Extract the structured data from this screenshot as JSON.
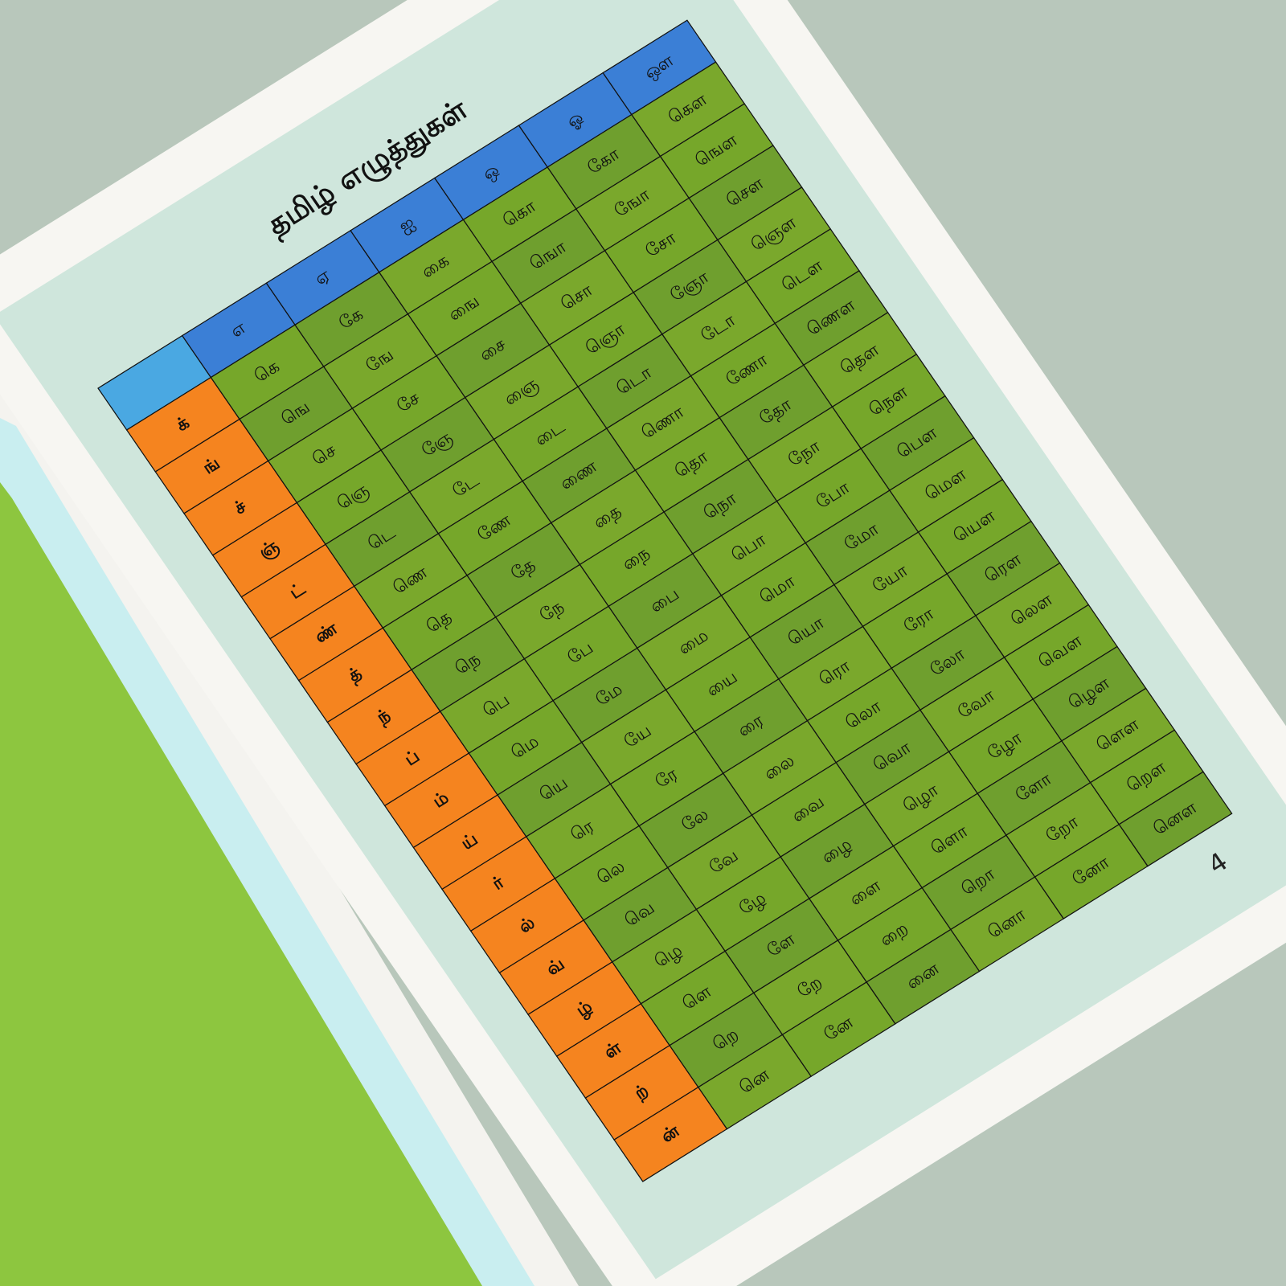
{
  "title": "தமிழ் எழுத்துகள்",
  "page_number": "4",
  "table": {
    "header": [
      "எ",
      "ஏ",
      "ஐ",
      "ஒ",
      "ஓ",
      "ஔ"
    ],
    "rows": [
      {
        "consonant": "க்",
        "cells": [
          "கெ",
          "கே",
          "கை",
          "கொ",
          "கோ",
          "கௌ"
        ]
      },
      {
        "consonant": "ங்",
        "cells": [
          "ஙெ",
          "ஙே",
          "ஙை",
          "ஙொ",
          "ஙோ",
          "ஙௌ"
        ]
      },
      {
        "consonant": "ச்",
        "cells": [
          "செ",
          "சே",
          "சை",
          "சொ",
          "சோ",
          "சௌ"
        ]
      },
      {
        "consonant": "ஞ்",
        "cells": [
          "ஞெ",
          "ஞே",
          "ஞை",
          "ஞொ",
          "ஞோ",
          "ஞௌ"
        ]
      },
      {
        "consonant": "ட்",
        "cells": [
          "டெ",
          "டே",
          "டை",
          "டொ",
          "டோ",
          "டௌ"
        ]
      },
      {
        "consonant": "ண்",
        "cells": [
          "ணெ",
          "ணே",
          "ணை",
          "ணொ",
          "ணோ",
          "ணௌ"
        ]
      },
      {
        "consonant": "த்",
        "cells": [
          "தெ",
          "தே",
          "தை",
          "தொ",
          "தோ",
          "தௌ"
        ]
      },
      {
        "consonant": "ந்",
        "cells": [
          "நெ",
          "நே",
          "நை",
          "நொ",
          "நோ",
          "நௌ"
        ]
      },
      {
        "consonant": "ப்",
        "cells": [
          "பெ",
          "பே",
          "பை",
          "பொ",
          "போ",
          "பௌ"
        ]
      },
      {
        "consonant": "ம்",
        "cells": [
          "மெ",
          "மே",
          "மை",
          "மொ",
          "மோ",
          "மௌ"
        ]
      },
      {
        "consonant": "ய்",
        "cells": [
          "யெ",
          "யே",
          "யை",
          "யொ",
          "யோ",
          "யௌ"
        ]
      },
      {
        "consonant": "ர்",
        "cells": [
          "ரெ",
          "ரே",
          "ரை",
          "ரொ",
          "ரோ",
          "ரௌ"
        ]
      },
      {
        "consonant": "ல்",
        "cells": [
          "லெ",
          "லே",
          "லை",
          "லொ",
          "லோ",
          "லௌ"
        ]
      },
      {
        "consonant": "வ்",
        "cells": [
          "வெ",
          "வே",
          "வை",
          "வொ",
          "வோ",
          "வௌ"
        ]
      },
      {
        "consonant": "ழ்",
        "cells": [
          "ழெ",
          "ழே",
          "ழை",
          "ழொ",
          "ழோ",
          "ழௌ"
        ]
      },
      {
        "consonant": "ள்",
        "cells": [
          "ளெ",
          "ளே",
          "ளை",
          "ளொ",
          "ளோ",
          "ளௌ"
        ]
      },
      {
        "consonant": "ற்",
        "cells": [
          "றெ",
          "றே",
          "றை",
          "றொ",
          "றோ",
          "றௌ"
        ]
      },
      {
        "consonant": "ன்",
        "cells": [
          "னெ",
          "னே",
          "னை",
          "னொ",
          "னோ",
          "னௌ"
        ]
      }
    ]
  }
}
